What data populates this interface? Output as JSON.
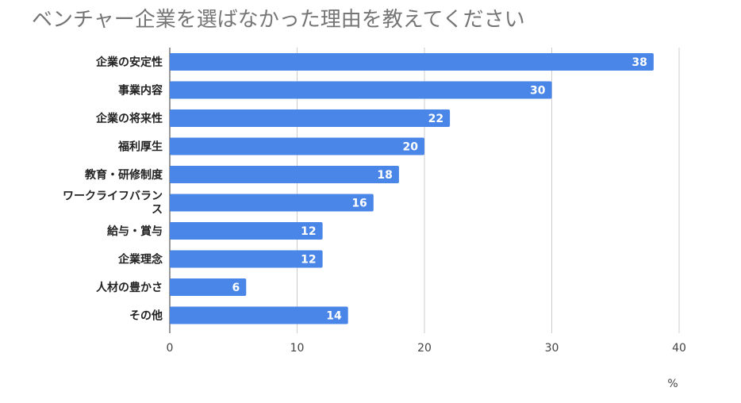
{
  "chart_data": {
    "type": "bar",
    "orientation": "horizontal",
    "title": "ベンチャー企業を選ばなかった理由を教えてください",
    "xlabel": "%",
    "ylabel": "",
    "xlim": [
      0,
      40
    ],
    "xticks": [
      0,
      10,
      20,
      30,
      40
    ],
    "grid": true,
    "categories": [
      "企業の安定性",
      "事業内容",
      "企業の将来性",
      "福利厚生",
      "教育・研修制度",
      "ワークライフバランス",
      "給与・賞与",
      "企業理念",
      "人材の豊かさ",
      "その他"
    ],
    "values": [
      38,
      30,
      22,
      20,
      18,
      16,
      12,
      12,
      6,
      14
    ],
    "bar_color": "#4a86e8",
    "grid_color": "#cccccc"
  }
}
